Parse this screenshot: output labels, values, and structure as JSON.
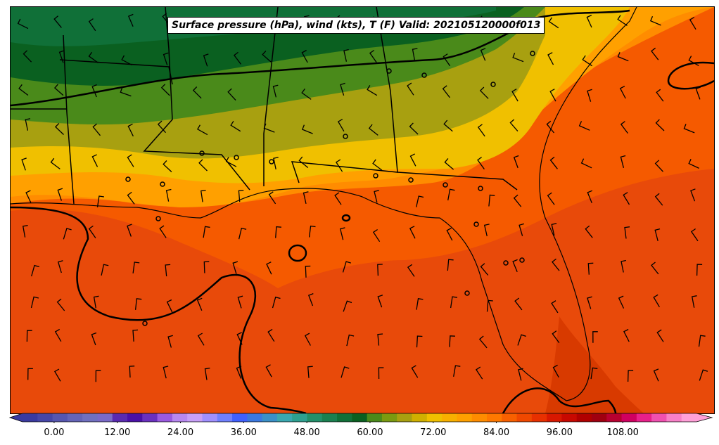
{
  "map": {
    "title": "Surface pressure (hPa), wind (kts), T (F) Valid: 202105120000f013"
  },
  "colorbar": {
    "ticks": [
      {
        "value": 0,
        "label": "0.00"
      },
      {
        "value": 12,
        "label": "12.00"
      },
      {
        "value": 24,
        "label": "24.00"
      },
      {
        "value": 36,
        "label": "36.00"
      },
      {
        "value": 48,
        "label": "48.00"
      },
      {
        "value": 60,
        "label": "60.00"
      },
      {
        "value": 72,
        "label": "72.00"
      },
      {
        "value": 84,
        "label": "84.00"
      },
      {
        "value": 96,
        "label": "96.00"
      },
      {
        "value": 108,
        "label": "108.00"
      }
    ],
    "min": -6,
    "max": 122,
    "colors": [
      "#3a3aa0",
      "#4646a8",
      "#5656b0",
      "#6464b8",
      "#7070c0",
      "#7a6ac8",
      "#5a2ab0",
      "#4a10a8",
      "#6a30c0",
      "#9a5ae0",
      "#b888f0",
      "#c8a0f8",
      "#a090ff",
      "#7080ff",
      "#4060ff",
      "#3a78e0",
      "#3a90c8",
      "#3aa8b0",
      "#2ea090",
      "#22906a",
      "#1a8050",
      "#107038",
      "#0a6020",
      "#4a8a1a",
      "#7a9a10",
      "#a8a010",
      "#d0b000",
      "#f0c000",
      "#f8b000",
      "#ffa000",
      "#ff8c00",
      "#ff7800",
      "#f86000",
      "#f04800",
      "#e83000",
      "#d81800",
      "#c80800",
      "#b00000",
      "#a00010",
      "#b80030",
      "#d00060",
      "#e8208a",
      "#f050b0",
      "#f880c8",
      "#ffa0d8"
    ]
  }
}
